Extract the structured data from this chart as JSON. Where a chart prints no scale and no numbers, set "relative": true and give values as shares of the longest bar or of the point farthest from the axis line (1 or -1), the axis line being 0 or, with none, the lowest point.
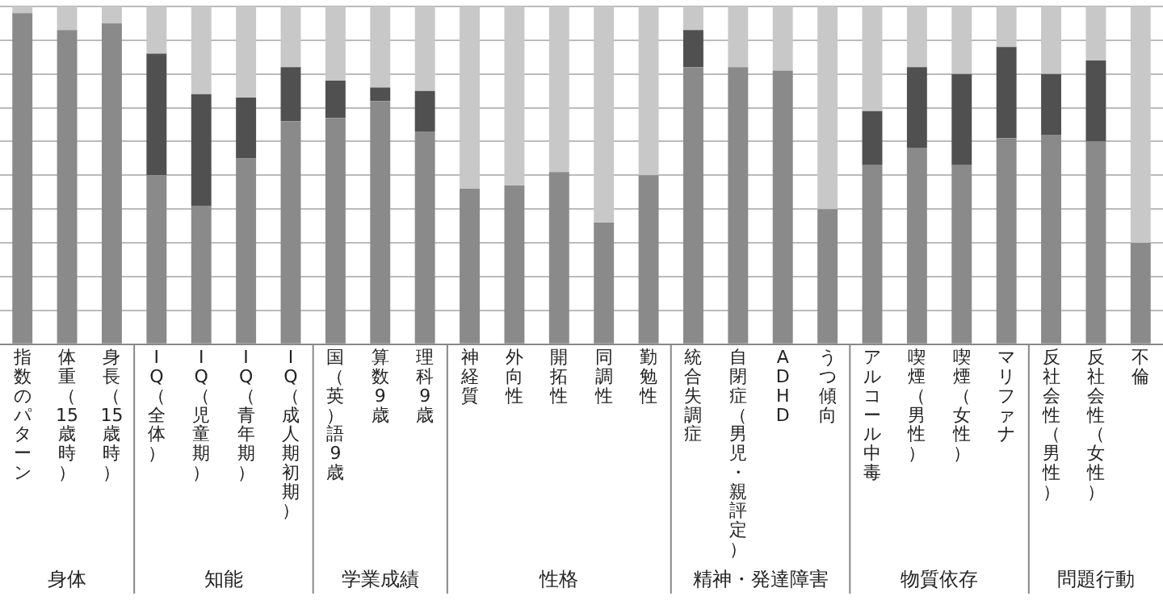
{
  "chart_data": {
    "type": "bar",
    "stacked": true,
    "relative": true,
    "grid": "y",
    "categories": [
      "指数のパターン",
      "体重（15歳時）",
      "身長（15歳時）",
      "IQ（全体）",
      "IQ（児童期）",
      "IQ（青年期）",
      "IQ（成人期初期）",
      "国（英）語9歳",
      "算数9歳",
      "理科9歳",
      "神経質",
      "外向性",
      "開拓性",
      "同調性",
      "勤勉性",
      "統合失調症",
      "自閉症（男児・親評定）",
      "ADHD",
      "うつ傾向",
      "アルコール中毒",
      "喫煙（男性）",
      "喫煙（女性）",
      "マリファナ",
      "反社会性（男性）",
      "反社会性（女性）",
      "不倫"
    ],
    "series": [
      {
        "color": "#8a8a8a",
        "values": [
          0.98,
          0.93,
          0.95,
          0.5,
          0.41,
          0.55,
          0.66,
          0.67,
          0.72,
          0.63,
          0.46,
          0.47,
          0.51,
          0.36,
          0.5,
          0.82,
          0.82,
          0.81,
          0.4,
          0.53,
          0.58,
          0.53,
          0.61,
          0.62,
          0.6,
          0.3
        ]
      },
      {
        "color": "#505050",
        "values": [
          0,
          0,
          0,
          0.36,
          0.33,
          0.18,
          0.16,
          0.11,
          0.04,
          0.12,
          0,
          0,
          0,
          0,
          0,
          0.11,
          0,
          0,
          0,
          0.16,
          0.24,
          0.27,
          0.27,
          0.18,
          0.24,
          0
        ]
      },
      {
        "color": "#c8c8c8",
        "values": [
          0.02,
          0.07,
          0.05,
          0.14,
          0.26,
          0.27,
          0.18,
          0.22,
          0.24,
          0.25,
          0.54,
          0.53,
          0.49,
          0.64,
          0.5,
          0.07,
          0.18,
          0.19,
          0.6,
          0.31,
          0.18,
          0.2,
          0.12,
          0.2,
          0.16,
          0.7
        ]
      }
    ],
    "annotations": [
      "身体",
      "知能",
      "学業成績",
      "性格",
      "精神・発達障害",
      "物質依存",
      "問題行動"
    ]
  }
}
